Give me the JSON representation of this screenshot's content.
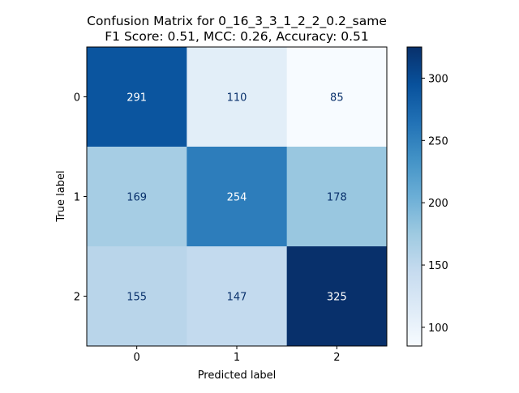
{
  "chart_data": {
    "type": "heatmap",
    "title_line1": "Confusion Matrix for 0_16_3_3_1_2_2_0.2_same",
    "title_line2": "F1 Score: 0.51, MCC: 0.26, Accuracy: 0.51",
    "xlabel": "Predicted label",
    "ylabel": "True label",
    "x_categories": [
      "0",
      "1",
      "2"
    ],
    "y_categories": [
      "0",
      "1",
      "2"
    ],
    "values": [
      [
        291,
        110,
        85
      ],
      [
        169,
        254,
        178
      ],
      [
        155,
        147,
        325
      ]
    ],
    "colormap": "Blues",
    "color_range": [
      85,
      325
    ],
    "colorbar_ticks": [
      100,
      150,
      200,
      250,
      300
    ],
    "colors": {
      "text_light": "#ffffff",
      "text_dark": "#08306b"
    }
  }
}
